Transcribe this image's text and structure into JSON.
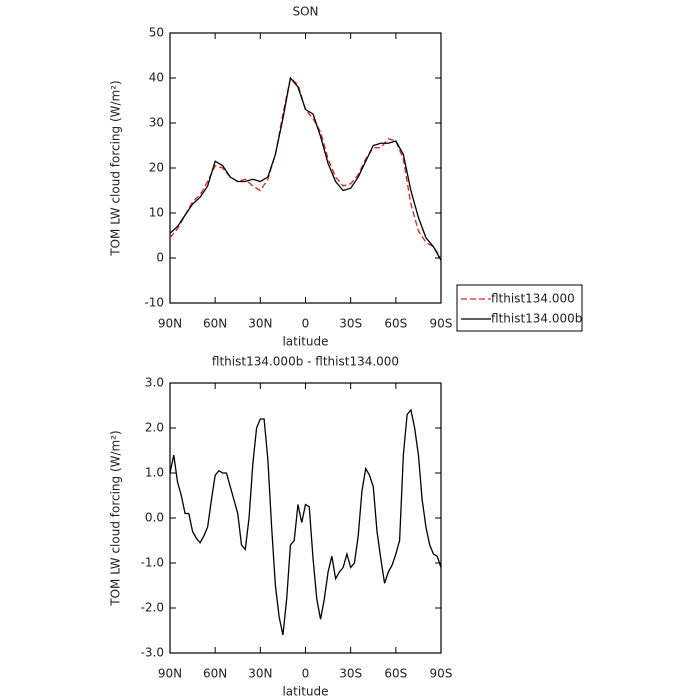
{
  "chart_data": [
    {
      "type": "line",
      "title": "SON",
      "xlabel": "latitude",
      "ylabel": "TOM LW cloud forcing (W/m²)",
      "x": [
        90,
        85,
        80,
        75,
        70,
        65,
        60,
        55,
        50,
        45,
        40,
        35,
        30,
        25,
        20,
        15,
        10,
        5,
        0,
        -5,
        -10,
        -15,
        -20,
        -25,
        -30,
        -35,
        -40,
        -45,
        -50,
        -55,
        -60,
        -65,
        -70,
        -75,
        -80,
        -85,
        -90
      ],
      "xlim": [
        90,
        -90
      ],
      "xticks": [
        {
          "value": 90,
          "label": "90N"
        },
        {
          "value": 60,
          "label": "60N"
        },
        {
          "value": 30,
          "label": "30N"
        },
        0,
        {
          "value": -30,
          "label": "30S"
        },
        {
          "value": -60,
          "label": "60S"
        },
        {
          "value": -90,
          "label": "90S"
        }
      ],
      "ylim": [
        -10,
        50
      ],
      "yticks": [
        -10,
        0,
        10,
        20,
        30,
        40,
        50
      ],
      "legend": "right",
      "series": [
        {
          "name": "flthist134.000",
          "color": "#e02020",
          "linestyle": "dashed",
          "values": [
            4.5,
            6.5,
            9.5,
            12.5,
            14,
            17,
            20.5,
            20,
            18,
            17,
            17.5,
            16,
            15,
            17.5,
            23,
            32,
            40,
            38.5,
            33,
            31,
            28,
            22,
            18,
            16,
            16.5,
            18.5,
            22,
            24.5,
            24.5,
            26.5,
            26,
            22,
            12,
            6,
            3.5,
            2.5,
            0
          ]
        },
        {
          "name": "flthist134.000b",
          "color": "#000000",
          "linestyle": "solid",
          "values": [
            5.5,
            7,
            9.5,
            12,
            13.5,
            16,
            21.5,
            20.5,
            18,
            17,
            17,
            17.5,
            17,
            18,
            23,
            31,
            40,
            38,
            33,
            32,
            27,
            21,
            17,
            15,
            15.5,
            18,
            21.5,
            25,
            25.5,
            25.5,
            26,
            23,
            15,
            9,
            4.5,
            2.5,
            -0.5
          ]
        }
      ]
    },
    {
      "type": "line",
      "title": "flthist134.000b - flthist134.000",
      "xlabel": "latitude",
      "ylabel": "TOM LW cloud forcing (W/m²)",
      "x": [
        90,
        87.5,
        85,
        82.5,
        80,
        77.5,
        75,
        72.5,
        70,
        67.5,
        65,
        62.5,
        60,
        57.5,
        55,
        52.5,
        50,
        47.5,
        45,
        42.5,
        40,
        37.5,
        35,
        32.5,
        30,
        27.5,
        25,
        22.5,
        20,
        17.5,
        15,
        12.5,
        10,
        7.5,
        5,
        2.5,
        0,
        -2.5,
        -5,
        -7.5,
        -10,
        -12.5,
        -15,
        -17.5,
        -20,
        -22.5,
        -25,
        -27.5,
        -30,
        -32.5,
        -35,
        -37.5,
        -40,
        -42.5,
        -45,
        -47.5,
        -50,
        -52.5,
        -55,
        -57.5,
        -60,
        -62.5,
        -65,
        -67.5,
        -70,
        -72.5,
        -75,
        -77.5,
        -80,
        -82.5,
        -85,
        -87.5,
        -90
      ],
      "xlim": [
        90,
        -90
      ],
      "xticks": [
        {
          "value": 90,
          "label": "90N"
        },
        {
          "value": 60,
          "label": "60N"
        },
        {
          "value": 30,
          "label": "30N"
        },
        0,
        {
          "value": -30,
          "label": "30S"
        },
        {
          "value": -60,
          "label": "60S"
        },
        {
          "value": -90,
          "label": "90S"
        }
      ],
      "ylim": [
        -3,
        3
      ],
      "yticks": [
        {
          "value": -3,
          "label": "-3.0"
        },
        {
          "value": -2,
          "label": "-2.0"
        },
        {
          "value": -1,
          "label": "-1.0"
        },
        {
          "value": 0,
          "label": "0.0"
        },
        {
          "value": 1,
          "label": "1.0"
        },
        {
          "value": 2,
          "label": "2.0"
        },
        {
          "value": 3,
          "label": "3.0"
        }
      ],
      "series": [
        {
          "color": "#000000",
          "linestyle": "solid",
          "values": [
            1.0,
            1.4,
            0.8,
            0.5,
            0.1,
            0.1,
            -0.3,
            -0.45,
            -0.55,
            -0.4,
            -0.2,
            0.4,
            0.95,
            1.05,
            1.0,
            1.0,
            0.7,
            0.4,
            0.1,
            -0.6,
            -0.7,
            0.0,
            1.2,
            2.0,
            2.2,
            2.2,
            1.3,
            -0.2,
            -1.5,
            -2.2,
            -2.6,
            -1.8,
            -0.6,
            -0.5,
            0.3,
            -0.1,
            0.3,
            0.25,
            -0.9,
            -1.8,
            -2.25,
            -1.8,
            -1.2,
            -0.85,
            -1.35,
            -1.2,
            -1.1,
            -0.8,
            -1.1,
            -1.0,
            -0.4,
            0.6,
            1.1,
            0.95,
            0.7,
            -0.3,
            -0.9,
            -1.45,
            -1.2,
            -1.05,
            -0.8,
            -0.5,
            1.4,
            2.3,
            2.4,
            2.0,
            1.4,
            0.4,
            -0.2,
            -0.6,
            -0.8,
            -0.85,
            -1.1
          ]
        }
      ]
    }
  ]
}
